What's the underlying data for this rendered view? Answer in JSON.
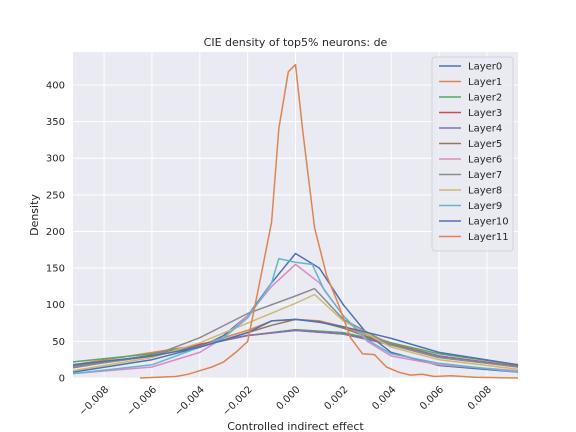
{
  "chart_data": {
    "type": "line",
    "title": "CIE density of top5% neurons: de",
    "xlabel": "Controlled indirect effect",
    "ylabel": "Density",
    "xlim": [
      -0.0093,
      0.0093
    ],
    "ylim": [
      0,
      445
    ],
    "xticks": [
      -0.008,
      -0.006,
      -0.004,
      -0.002,
      0.0,
      0.002,
      0.004,
      0.006,
      0.008
    ],
    "xtick_labels": [
      "−0.008",
      "−0.006",
      "−0.004",
      "−0.002",
      "0.000",
      "0.002",
      "0.004",
      "0.006",
      "0.008"
    ],
    "yticks": [
      0,
      50,
      100,
      150,
      200,
      250,
      300,
      350,
      400
    ],
    "ytick_labels": [
      "0",
      "50",
      "100",
      "150",
      "200",
      "250",
      "300",
      "350",
      "400"
    ],
    "grid": true,
    "legend_position": "top-right",
    "series": [
      {
        "name": "Layer0",
        "color": "#4c72b0",
        "x": [
          -0.0093,
          -0.006,
          -0.004,
          -0.003,
          -0.002,
          -0.001,
          0.0,
          0.001,
          0.002,
          0.003,
          0.004,
          0.006,
          0.0093
        ],
        "y": [
          8,
          25,
          42,
          58,
          85,
          130,
          170,
          150,
          100,
          60,
          35,
          17,
          8
        ]
      },
      {
        "name": "Layer1",
        "color": "#dd8452",
        "x": [
          -0.0093,
          -0.004,
          -0.002,
          -0.001,
          0.0,
          0.001,
          0.002,
          0.004,
          0.006,
          0.0093
        ],
        "y": [
          18,
          45,
          65,
          78,
          80,
          78,
          70,
          48,
          30,
          16
        ]
      },
      {
        "name": "Layer2",
        "color": "#55a868",
        "x": [
          -0.0093,
          -0.006,
          -0.004,
          -0.002,
          0.0,
          0.002,
          0.004,
          0.006,
          0.0093
        ],
        "y": [
          22,
          33,
          45,
          58,
          66,
          62,
          48,
          33,
          18
        ]
      },
      {
        "name": "Layer3",
        "color": "#c44e52",
        "x": [
          -0.0093,
          -0.006,
          -0.004,
          -0.002,
          0.0,
          0.002,
          0.004,
          0.006,
          0.0093
        ],
        "y": [
          15,
          30,
          46,
          58,
          65,
          60,
          46,
          30,
          16
        ]
      },
      {
        "name": "Layer4",
        "color": "#8172b3",
        "x": [
          -0.0093,
          -0.006,
          -0.004,
          -0.002,
          0.0,
          0.002,
          0.004,
          0.006,
          0.0093
        ],
        "y": [
          16,
          30,
          44,
          58,
          65,
          60,
          45,
          30,
          15
        ]
      },
      {
        "name": "Layer5",
        "color": "#937860",
        "x": [
          -0.0093,
          -0.004,
          -0.002,
          -0.001,
          0.0,
          0.001,
          0.002,
          0.004,
          0.006,
          0.0093
        ],
        "y": [
          14,
          42,
          62,
          72,
          80,
          77,
          68,
          45,
          28,
          15
        ]
      },
      {
        "name": "Layer6",
        "color": "#da8bc3",
        "x": [
          -0.0093,
          -0.006,
          -0.004,
          -0.003,
          -0.002,
          -0.001,
          0.0,
          0.001,
          0.002,
          0.003,
          0.004,
          0.006,
          0.0093
        ],
        "y": [
          6,
          15,
          35,
          55,
          85,
          125,
          155,
          130,
          85,
          50,
          30,
          18,
          10
        ]
      },
      {
        "name": "Layer7",
        "color": "#8c8c8c",
        "x": [
          -0.0093,
          -0.006,
          -0.004,
          -0.002,
          0.0,
          0.0008,
          0.002,
          0.004,
          0.006,
          0.0093
        ],
        "y": [
          15,
          30,
          55,
          88,
          112,
          122,
          80,
          45,
          28,
          15
        ]
      },
      {
        "name": "Layer8",
        "color": "#ccb974",
        "x": [
          -0.0093,
          -0.006,
          -0.004,
          -0.002,
          0.0,
          0.0008,
          0.002,
          0.004,
          0.006,
          0.0093
        ],
        "y": [
          10,
          28,
          48,
          75,
          102,
          114,
          78,
          42,
          25,
          12
        ]
      },
      {
        "name": "Layer9",
        "color": "#64b5cd",
        "x": [
          -0.0093,
          -0.006,
          -0.004,
          -0.003,
          -0.002,
          -0.001,
          -0.0007,
          0.0,
          0.0007,
          0.0012,
          0.002,
          0.003,
          0.004,
          0.006,
          0.0093
        ],
        "y": [
          6,
          18,
          42,
          55,
          82,
          130,
          163,
          158,
          155,
          120,
          85,
          52,
          33,
          20,
          8
        ]
      },
      {
        "name": "Layer10",
        "color": "#4c72b0",
        "x": [
          -0.0093,
          -0.006,
          -0.004,
          -0.002,
          -0.001,
          0.0,
          0.001,
          0.002,
          0.004,
          0.006,
          0.0093
        ],
        "y": [
          18,
          30,
          42,
          62,
          78,
          80,
          76,
          70,
          54,
          35,
          18
        ]
      },
      {
        "name": "Layer11",
        "color": "#dd8452",
        "x": [
          -0.0065,
          -0.005,
          -0.0045,
          -0.004,
          -0.0035,
          -0.003,
          -0.0025,
          -0.002,
          -0.0015,
          -0.001,
          -0.0007,
          -0.0003,
          0.0,
          0.0003,
          0.0008,
          0.0013,
          0.0018,
          0.0023,
          0.0028,
          0.0033,
          0.0038,
          0.0043,
          0.0048,
          0.0053,
          0.0058,
          0.0065,
          0.0075,
          0.0093
        ],
        "y": [
          0,
          2,
          5,
          10,
          15,
          22,
          35,
          50,
          130,
          213,
          340,
          418,
          428,
          338,
          205,
          140,
          100,
          55,
          33,
          32,
          15,
          8,
          4,
          5,
          2,
          3,
          1,
          0
        ]
      }
    ]
  }
}
